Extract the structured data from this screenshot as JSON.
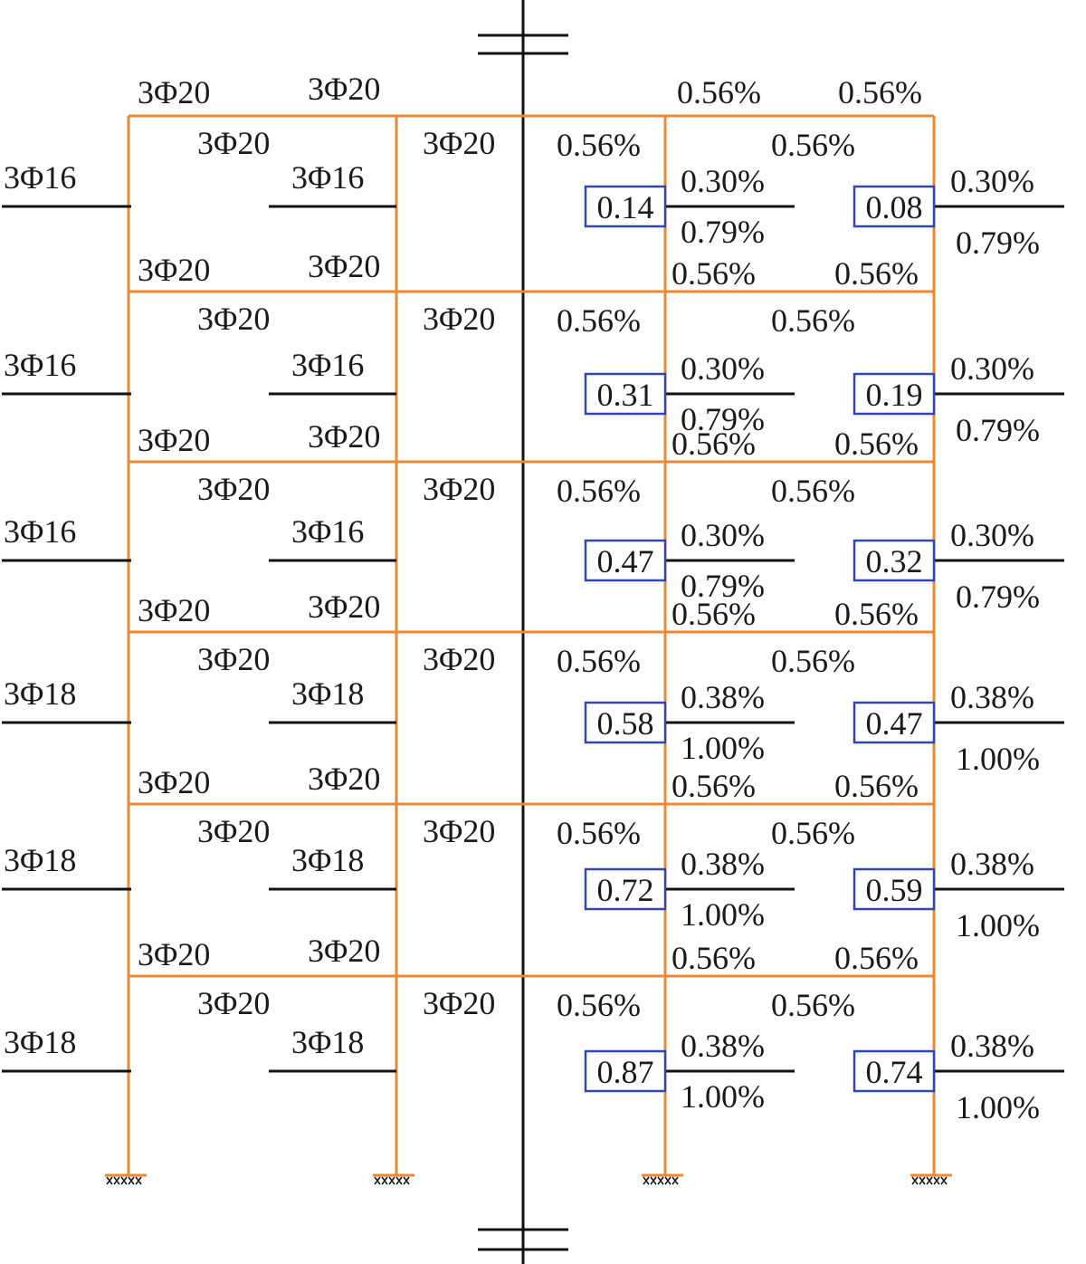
{
  "colors": {
    "frame": "#ee8833",
    "bar_line": "#111111",
    "box_border": "#3344aa",
    "text": "#1a1a1a"
  },
  "left": {
    "storeys": [
      {
        "top_left": "3Φ20",
        "top_right": "3Φ20",
        "span_top": "3Φ20",
        "span_mid": "3Φ20",
        "col_outer": "3Φ16",
        "col_inner": "3Φ16",
        "bot_left": "3Φ20",
        "bot_right": "3Φ20"
      },
      {
        "span_top": "3Φ20",
        "span_mid": "3Φ20",
        "col_outer": "3Φ16",
        "col_inner": "3Φ16",
        "bot_left": "3Φ20",
        "bot_right": "3Φ20"
      },
      {
        "span_top": "3Φ20",
        "span_mid": "3Φ20",
        "col_outer": "3Φ16",
        "col_inner": "3Φ16",
        "bot_left": "3Φ20",
        "bot_right": "3Φ20"
      },
      {
        "span_top": "3Φ20",
        "span_mid": "3Φ20",
        "col_outer": "3Φ18",
        "col_inner": "3Φ18",
        "bot_left": "3Φ20",
        "bot_right": "3Φ20"
      },
      {
        "span_top": "3Φ20",
        "span_mid": "3Φ20",
        "col_outer": "3Φ18",
        "col_inner": "3Φ18",
        "bot_left": "3Φ20",
        "bot_right": "3Φ20"
      },
      {
        "span_top": "3Φ20",
        "span_mid": "3Φ20",
        "col_outer": "3Φ18",
        "col_inner": "3Φ18"
      }
    ]
  },
  "right": {
    "storeys": [
      {
        "top_left": "0.56%",
        "top_right": "0.56%",
        "beam_mid_left": "0.56%",
        "beam_mid_right": "0.56%",
        "inner_box": "0.14",
        "inner_top": "0.30%",
        "inner_bot": "0.79%",
        "outer_box": "0.08",
        "outer_top": "0.30%",
        "outer_bot": "0.79%",
        "bot_left": "0.56%",
        "bot_right": "0.56%"
      },
      {
        "beam_mid_left": "0.56%",
        "beam_mid_right": "0.56%",
        "inner_box": "0.31",
        "inner_top": "0.30%",
        "inner_bot": "0.79%",
        "outer_box": "0.19",
        "outer_top": "0.30%",
        "outer_bot": "0.79%",
        "bot_left": "0.56%",
        "bot_right": "0.56%"
      },
      {
        "beam_mid_left": "0.56%",
        "beam_mid_right": "0.56%",
        "inner_box": "0.47",
        "inner_top": "0.30%",
        "inner_bot": "0.79%",
        "outer_box": "0.32",
        "outer_top": "0.30%",
        "outer_bot": "0.79%",
        "bot_left": "0.56%",
        "bot_right": "0.56%"
      },
      {
        "beam_mid_left": "0.56%",
        "beam_mid_right": "0.56%",
        "inner_box": "0.58",
        "inner_top": "0.38%",
        "inner_bot": "1.00%",
        "outer_box": "0.47",
        "outer_top": "0.38%",
        "outer_bot": "1.00%",
        "bot_left": "0.56%",
        "bot_right": "0.56%"
      },
      {
        "beam_mid_left": "0.56%",
        "beam_mid_right": "0.56%",
        "inner_box": "0.72",
        "inner_top": "0.38%",
        "inner_bot": "1.00%",
        "outer_box": "0.59",
        "outer_top": "0.38%",
        "outer_bot": "1.00%",
        "bot_left": "0.56%",
        "bot_right": "0.56%"
      },
      {
        "beam_mid_left": "0.56%",
        "beam_mid_right": "0.56%",
        "inner_box": "0.87",
        "inner_top": "0.38%",
        "inner_bot": "1.00%",
        "outer_box": "0.74",
        "outer_top": "0.38%",
        "outer_bot": "1.00%"
      }
    ]
  }
}
